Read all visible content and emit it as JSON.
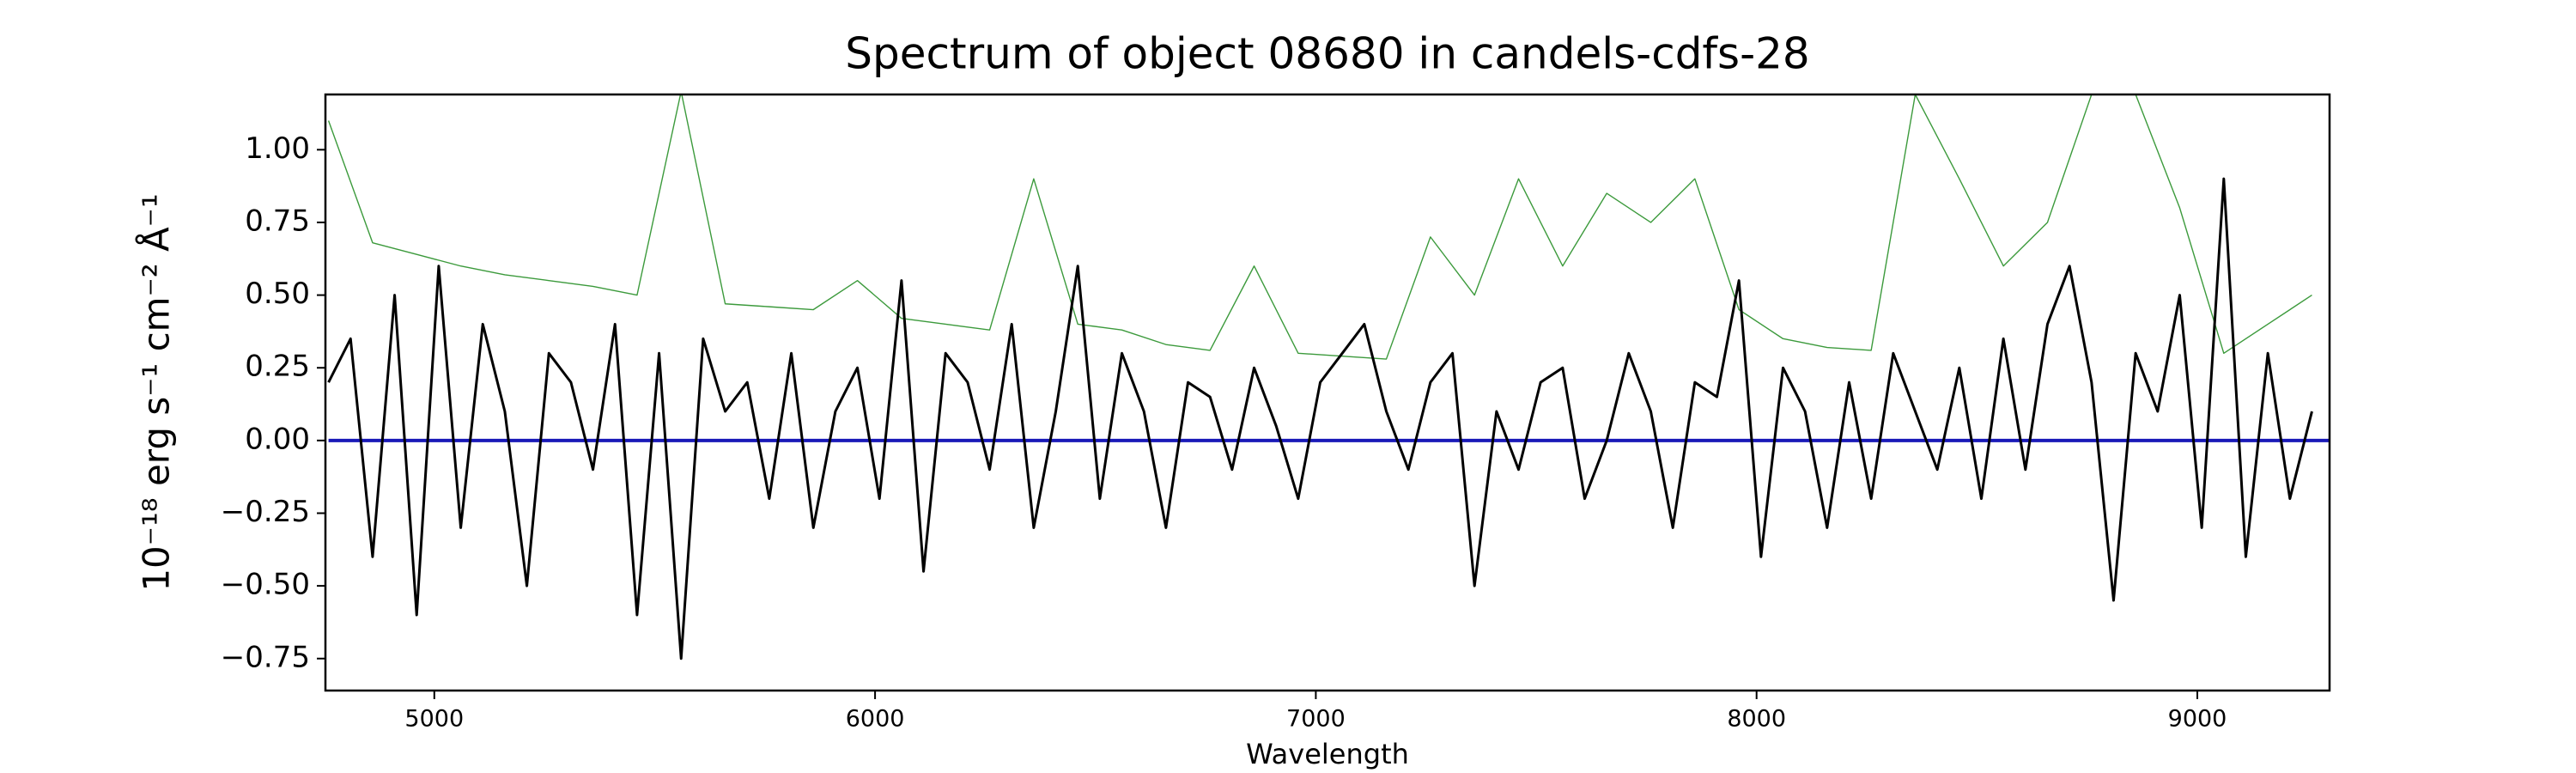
{
  "chart_data": {
    "type": "line",
    "title": "Spectrum of object 08680 in candels-cdfs-28",
    "x_label": "Wavelength",
    "y_label": "10⁻¹⁸ erg s⁻¹ cm⁻² Å⁻¹",
    "xlim": [
      4753,
      9300
    ],
    "ylim": [
      -0.86,
      1.19
    ],
    "xticks": [
      5000,
      6000,
      7000,
      8000,
      9000
    ],
    "yticks": [
      {
        "value": -0.75,
        "label": "−0.75"
      },
      {
        "value": -0.5,
        "label": "−0.50"
      },
      {
        "value": -0.25,
        "label": "−0.25"
      },
      {
        "value": 0,
        "label": "0.00"
      },
      {
        "value": 0.25,
        "label": "0.25"
      },
      {
        "value": 0.5,
        "label": "0.50"
      },
      {
        "value": 0.75,
        "label": "0.75"
      },
      {
        "value": 1,
        "label": "1.00"
      }
    ],
    "grid": false,
    "series": [
      {
        "color": "#3c9a3c",
        "width": 1.4,
        "x": [
          4760,
          4860,
          4960,
          5060,
          5160,
          5260,
          5360,
          5460,
          5560,
          5660,
          5760,
          5860,
          5960,
          6060,
          6160,
          6260,
          6360,
          6460,
          6560,
          6660,
          6760,
          6860,
          6960,
          7060,
          7160,
          7260,
          7360,
          7460,
          7560,
          7660,
          7760,
          7860,
          7960,
          8060,
          8160,
          8260,
          8360,
          8460,
          8560,
          8660,
          8760,
          8860,
          8960,
          9060,
          9160,
          9260
        ],
        "values": [
          1.1,
          0.68,
          0.64,
          0.6,
          0.57,
          0.55,
          0.53,
          0.5,
          1.2,
          0.47,
          0.46,
          0.45,
          0.55,
          0.42,
          0.4,
          0.38,
          0.9,
          0.4,
          0.38,
          0.33,
          0.31,
          0.6,
          0.3,
          0.29,
          0.28,
          0.7,
          0.5,
          0.9,
          0.6,
          0.85,
          0.75,
          0.9,
          0.45,
          0.35,
          0.32,
          0.31,
          1.19,
          0.9,
          0.6,
          0.75,
          1.19,
          1.19,
          0.8,
          0.3,
          0.4,
          0.5
        ]
      },
      {
        "color": "#1a1ab8",
        "width": 4,
        "x": [
          4760,
          9300
        ],
        "values": [
          0,
          0
        ]
      },
      {
        "color": "#000000",
        "width": 3,
        "x": [
          4760,
          4810,
          4860,
          4910,
          4960,
          5010,
          5060,
          5110,
          5160,
          5210,
          5260,
          5310,
          5360,
          5410,
          5460,
          5510,
          5560,
          5610,
          5660,
          5710,
          5760,
          5810,
          5860,
          5910,
          5960,
          6010,
          6060,
          6110,
          6160,
          6210,
          6260,
          6310,
          6360,
          6410,
          6460,
          6510,
          6560,
          6610,
          6660,
          6710,
          6760,
          6810,
          6860,
          6910,
          6960,
          7010,
          7060,
          7110,
          7160,
          7210,
          7260,
          7310,
          7360,
          7410,
          7460,
          7510,
          7560,
          7610,
          7660,
          7710,
          7760,
          7810,
          7860,
          7910,
          7960,
          8010,
          8060,
          8110,
          8160,
          8210,
          8260,
          8310,
          8360,
          8410,
          8460,
          8510,
          8560,
          8610,
          8660,
          8710,
          8760,
          8810,
          8860,
          8910,
          8960,
          9010,
          9060,
          9110,
          9160,
          9210,
          9260
        ],
        "values": [
          0.2,
          0.35,
          -0.4,
          0.5,
          -0.6,
          0.6,
          -0.3,
          0.4,
          0.1,
          -0.5,
          0.3,
          0.2,
          -0.1,
          0.4,
          -0.6,
          0.3,
          -0.75,
          0.35,
          0.1,
          0.2,
          -0.2,
          0.3,
          -0.3,
          0.1,
          0.25,
          -0.2,
          0.55,
          -0.45,
          0.3,
          0.2,
          -0.1,
          0.4,
          -0.3,
          0.1,
          0.6,
          -0.2,
          0.3,
          0.1,
          -0.3,
          0.2,
          0.15,
          -0.1,
          0.25,
          0.05,
          -0.2,
          0.2,
          0.3,
          0.4,
          0.1,
          -0.1,
          0.2,
          0.3,
          -0.5,
          0.1,
          -0.1,
          0.2,
          0.25,
          -0.2,
          0,
          0.3,
          0.1,
          -0.3,
          0.2,
          0.15,
          0.55,
          -0.4,
          0.25,
          0.1,
          -0.3,
          0.2,
          -0.2,
          0.3,
          0.1,
          -0.1,
          0.25,
          -0.2,
          0.35,
          -0.1,
          0.4,
          0.6,
          0.2,
          -0.55,
          0.3,
          0.1,
          0.5,
          -0.3,
          0.9,
          -0.4,
          0.3,
          -0.2,
          0.1
        ]
      }
    ]
  }
}
